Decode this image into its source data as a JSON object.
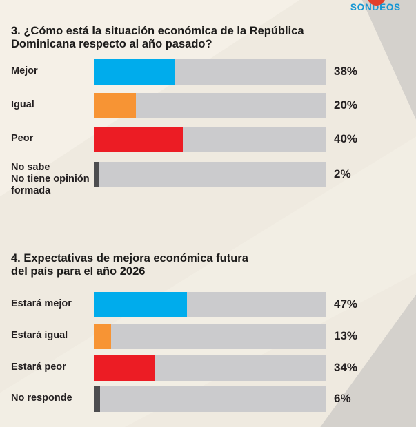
{
  "logo": {
    "text": "SONDEOS"
  },
  "colors": {
    "background": "#efeae0",
    "bar_track": "#cbcbcd",
    "blue": "#00acec",
    "orange": "#f79434",
    "red": "#ec1c24",
    "dark_gray": "#4d4d4f",
    "text": "#231f20",
    "logo_blue": "#1697d4",
    "logo_dot_red": "#e2402c",
    "corner_wedge_gray": "#d4d1cc"
  },
  "chart_data": [
    {
      "type": "bar",
      "orientation": "horizontal",
      "title": "3. ¿Cómo está la situación económica de la República\nDominicana respecto al año pasado?",
      "unit": "%",
      "categories": [
        "Mejor",
        "Igual",
        "Peor",
        "No sabe No tiene opinión formada"
      ],
      "values": [
        38,
        20,
        40,
        2
      ],
      "items": [
        {
          "label": "Mejor",
          "value": 38,
          "value_label": "38%",
          "color": "#00acec",
          "bar_pct": 35
        },
        {
          "label": "Igual",
          "value": 20,
          "value_label": "20%",
          "color": "#f79434",
          "bar_pct": 18
        },
        {
          "label": "Peor",
          "value": 40,
          "value_label": "40%",
          "color": "#ec1c24",
          "bar_pct": 38.3
        },
        {
          "label": "No sabe\nNo tiene opinión\nformada",
          "value": 2,
          "value_label": "2%",
          "color": "#4d4d4f",
          "bar_pct": 2.4
        }
      ]
    },
    {
      "type": "bar",
      "orientation": "horizontal",
      "title": "4. Expectativas de mejora económica futura\ndel país para el año 2026",
      "unit": "%",
      "categories": [
        "Estará mejor",
        "Estará igual",
        "Estará peor",
        "No responde"
      ],
      "values": [
        47,
        13,
        34,
        6
      ],
      "items": [
        {
          "label": "Estará mejor",
          "value": 47,
          "value_label": "47%",
          "color": "#00acec",
          "bar_pct": 40
        },
        {
          "label": "Estará igual",
          "value": 13,
          "value_label": "13%",
          "color": "#f79434",
          "bar_pct": 7.5
        },
        {
          "label": "Estará peor",
          "value": 34,
          "value_label": "34%",
          "color": "#ec1c24",
          "bar_pct": 26.5
        },
        {
          "label": "No responde",
          "value": 6,
          "value_label": "6%",
          "color": "#4d4d4f",
          "bar_pct": 2.8
        }
      ]
    }
  ]
}
